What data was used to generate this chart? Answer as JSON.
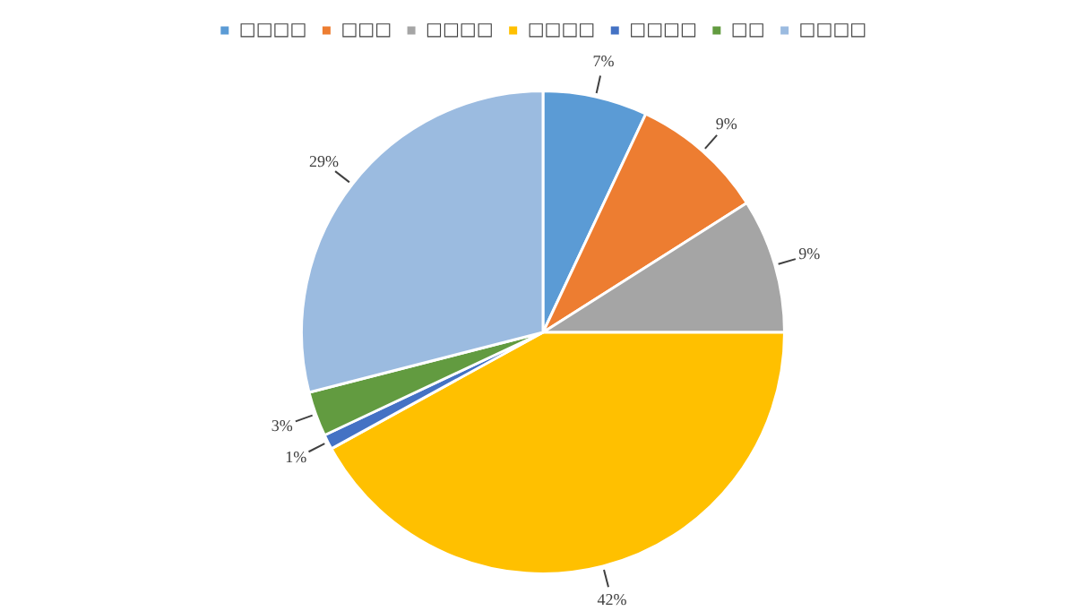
{
  "chart_data": {
    "type": "pie",
    "categories": [
      "□□□□",
      "□□□",
      "□□□□",
      "□□□□",
      "□□□□",
      "□□",
      "□□□□"
    ],
    "values": [
      7,
      9,
      9,
      42,
      1,
      3,
      29
    ],
    "colors": [
      "#5b9bd5",
      "#ed7d31",
      "#a5a5a5",
      "#ffc000",
      "#4472c4",
      "#629b40",
      "#9bbbe0"
    ],
    "value_labels": [
      "7%",
      "9%",
      "9%",
      "42%",
      "1%",
      "3%",
      "29%"
    ],
    "legend": "top"
  }
}
